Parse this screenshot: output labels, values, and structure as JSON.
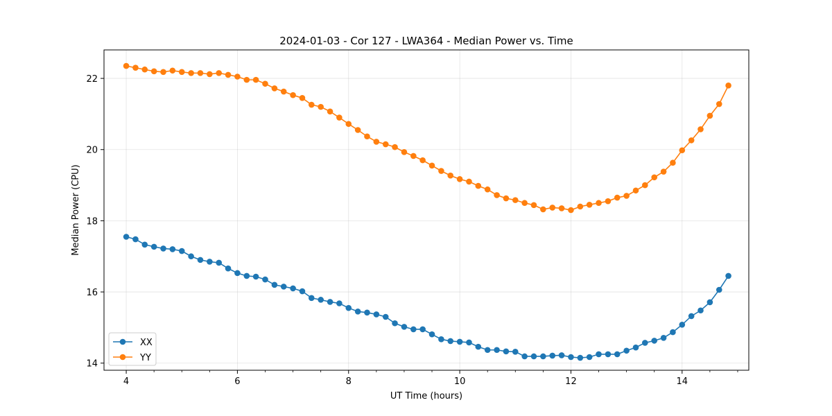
{
  "chart_data": {
    "type": "line",
    "title": "2024-01-03 - Cor 127 - LWA364 - Median Power vs. Time",
    "xlabel": "UT Time (hours)",
    "ylabel": "Median Power (CPU)",
    "xlim": [
      3.6,
      15.2
    ],
    "ylim": [
      13.8,
      22.8
    ],
    "xticks": [
      4,
      6,
      8,
      10,
      12,
      14
    ],
    "yticks": [
      14,
      16,
      18,
      20,
      22
    ],
    "grid": true,
    "legend_position": "lower-left",
    "x": [
      4.0,
      4.167,
      4.333,
      4.5,
      4.667,
      4.833,
      5.0,
      5.167,
      5.333,
      5.5,
      5.667,
      5.833,
      6.0,
      6.167,
      6.333,
      6.5,
      6.667,
      6.833,
      7.0,
      7.167,
      7.333,
      7.5,
      7.667,
      7.833,
      8.0,
      8.167,
      8.333,
      8.5,
      8.667,
      8.833,
      9.0,
      9.167,
      9.333,
      9.5,
      9.667,
      9.833,
      10.0,
      10.167,
      10.333,
      10.5,
      10.667,
      10.833,
      11.0,
      11.167,
      11.333,
      11.5,
      11.667,
      11.833,
      12.0,
      12.167,
      12.333,
      12.5,
      12.667,
      12.833,
      13.0,
      13.167,
      13.333,
      13.5,
      13.667,
      13.833,
      14.0,
      14.167,
      14.333,
      14.5,
      14.667,
      14.833
    ],
    "series": [
      {
        "name": "XX",
        "color": "#1f77b4",
        "values": [
          17.55,
          17.48,
          17.33,
          17.27,
          17.22,
          17.2,
          17.15,
          17.0,
          16.9,
          16.85,
          16.82,
          16.66,
          16.53,
          16.45,
          16.43,
          16.35,
          16.2,
          16.15,
          16.1,
          16.02,
          15.83,
          15.78,
          15.72,
          15.68,
          15.55,
          15.45,
          15.42,
          15.37,
          15.3,
          15.12,
          15.02,
          14.95,
          14.95,
          14.81,
          14.67,
          14.62,
          14.6,
          14.58,
          14.46,
          14.37,
          14.37,
          14.33,
          14.32,
          14.19,
          14.19,
          14.19,
          14.21,
          14.22,
          14.17,
          14.15,
          14.17,
          14.25,
          14.25,
          14.25,
          14.35,
          14.44,
          14.57,
          14.63,
          14.71,
          14.87,
          15.08,
          15.32,
          15.48,
          15.71,
          16.06,
          16.45
        ]
      },
      {
        "name": "YY",
        "color": "#ff7f0e",
        "values": [
          22.35,
          22.3,
          22.25,
          22.2,
          22.18,
          22.22,
          22.18,
          22.15,
          22.15,
          22.12,
          22.15,
          22.1,
          22.05,
          21.96,
          21.96,
          21.85,
          21.72,
          21.63,
          21.53,
          21.45,
          21.26,
          21.2,
          21.07,
          20.9,
          20.72,
          20.55,
          20.37,
          20.22,
          20.15,
          20.07,
          19.93,
          19.82,
          19.7,
          19.55,
          19.4,
          19.27,
          19.17,
          19.1,
          18.98,
          18.88,
          18.72,
          18.63,
          18.58,
          18.5,
          18.44,
          18.32,
          18.37,
          18.35,
          18.3,
          18.4,
          18.45,
          18.5,
          18.55,
          18.65,
          18.7,
          18.85,
          19.0,
          19.22,
          19.38,
          19.63,
          19.98,
          20.26,
          20.57,
          20.95,
          21.28,
          21.8
        ]
      }
    ]
  }
}
